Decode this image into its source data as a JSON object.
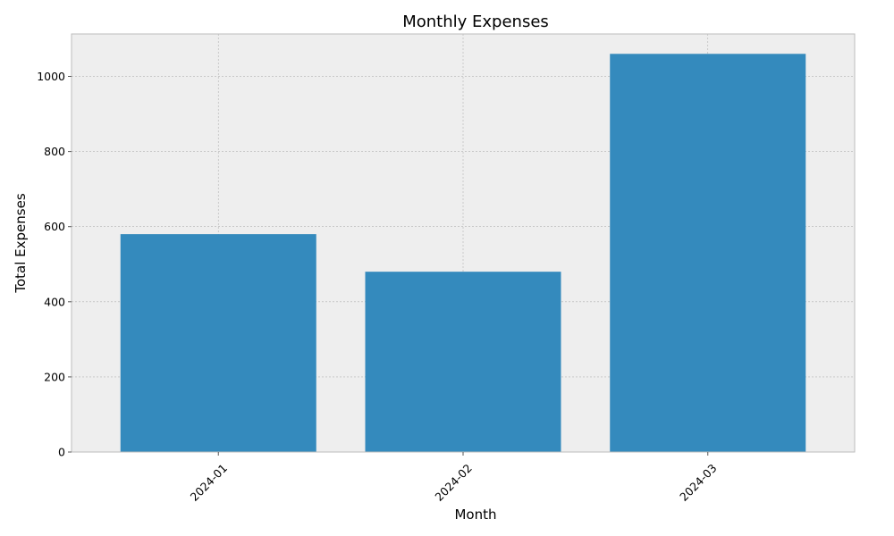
{
  "chart_data": {
    "type": "bar",
    "title": "Monthly Expenses",
    "xlabel": "Month",
    "ylabel": "Total Expenses",
    "categories": [
      "2024-01",
      "2024-02",
      "2024-03"
    ],
    "values": [
      580,
      480,
      1060
    ],
    "ylim": [
      0,
      1113
    ],
    "yticks": [
      0,
      200,
      400,
      600,
      800,
      1000
    ],
    "grid": true,
    "xtick_rotation_deg": 45,
    "colors": {
      "bar": "#348abd",
      "plot_background": "#eeeeee",
      "grid": "#b2b2b2",
      "spine": "#bcbcbc"
    }
  }
}
